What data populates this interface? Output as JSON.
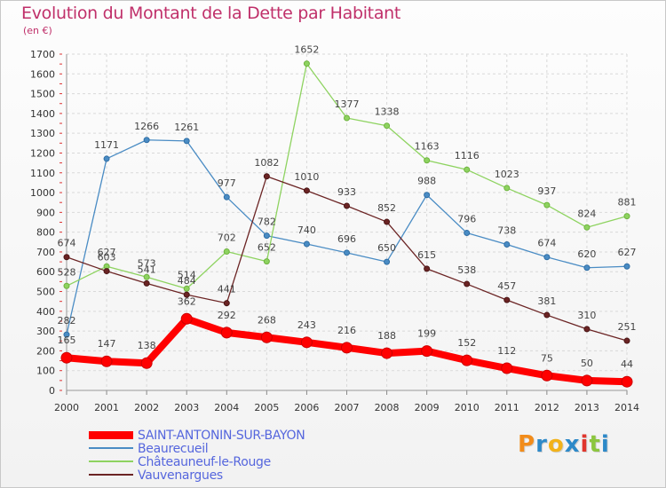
{
  "header": {
    "title": "Evolution du Montant de la Dette par Habitant",
    "subtitle": "(en €)"
  },
  "logo": {
    "text": "Proxiti",
    "colors": [
      "#f28c1a",
      "#2d89c8",
      "#f2b21a",
      "#2d89c8",
      "#e0362d",
      "#8cc63f",
      "#2d89c8"
    ]
  },
  "chart_data": {
    "type": "line",
    "title": "Evolution du Montant de la Dette par Habitant",
    "subtitle": "(en €)",
    "xlabel": "",
    "ylabel": "",
    "ylim": [
      0,
      1700
    ],
    "grid": true,
    "legend_position": "bottom-left",
    "x": [
      2000,
      2001,
      2002,
      2003,
      2004,
      2005,
      2006,
      2007,
      2008,
      2009,
      2010,
      2011,
      2012,
      2013,
      2014
    ],
    "x_ticks": [
      "2000",
      "2001",
      "2002",
      "2003",
      "2004",
      "2005",
      "2006",
      "2007",
      "2008",
      "2009",
      "2010",
      "2011",
      "2012",
      "2013",
      "2014"
    ],
    "y_ticks": [
      0,
      100,
      200,
      300,
      400,
      500,
      600,
      700,
      800,
      900,
      1000,
      1100,
      1200,
      1300,
      1400,
      1500,
      1600,
      1700
    ],
    "series": [
      {
        "name": "Beaurecueil",
        "color": "#4a8cc4",
        "values": [
          282,
          1171,
          1266,
          1261,
          977,
          782,
          740,
          696,
          650,
          988,
          796,
          738,
          674,
          620,
          627
        ]
      },
      {
        "name": "Châteauneuf-le-Rouge",
        "color": "#8ed360",
        "values": [
          528,
          627,
          573,
          514,
          702,
          652,
          1652,
          1377,
          1338,
          1163,
          1116,
          1023,
          937,
          824,
          881
        ]
      },
      {
        "name": "Vauvenargues",
        "color": "#6b2424",
        "values": [
          674,
          603,
          541,
          484,
          441,
          1082,
          1010,
          933,
          852,
          615,
          538,
          457,
          381,
          310,
          251
        ]
      },
      {
        "name": "SAINT-ANTONIN-SUR-BAYON",
        "color": "#ff0000",
        "values": [
          165,
          147,
          138,
          362,
          292,
          268,
          243,
          216,
          188,
          199,
          152,
          112,
          75,
          50,
          44
        ]
      }
    ],
    "legend_order": [
      "SAINT-ANTONIN-SUR-BAYON",
      "Beaurecueil",
      "Châteauneuf-le-Rouge",
      "Vauvenargues"
    ]
  }
}
